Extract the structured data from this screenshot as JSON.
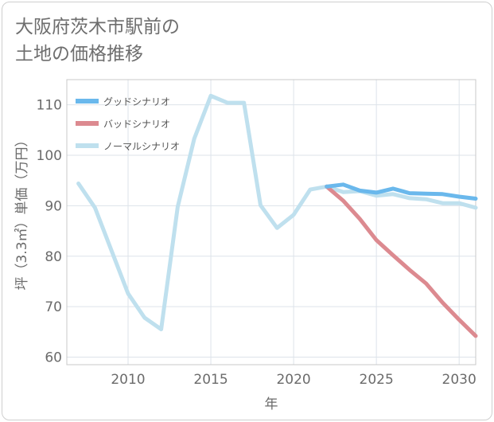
{
  "page": {
    "title_line1": "大阪府茨木市駅前の",
    "title_line2": "土地の価格推移"
  },
  "chart_data": {
    "type": "line",
    "xlabel": "年",
    "ylabel": "坪（3.3㎡）単価（万円）",
    "xlim": [
      2006.3,
      2031
    ],
    "ylim": [
      58.5,
      115
    ],
    "xticks": [
      2010,
      2015,
      2020,
      2025,
      2030
    ],
    "yticks": [
      60,
      70,
      80,
      90,
      100,
      110
    ],
    "grid": true,
    "legend_position": "top-left",
    "series": [
      {
        "name": "グッドシナリオ",
        "color": "#6ab8ec",
        "x": [
          2022,
          2023,
          2024,
          2025,
          2026,
          2027,
          2028,
          2029,
          2030,
          2031
        ],
        "values": [
          93.8,
          94.2,
          93.0,
          92.6,
          93.4,
          92.5,
          92.4,
          92.3,
          91.8,
          91.4
        ]
      },
      {
        "name": "バッドシナリオ",
        "color": "#dc8a90",
        "x": [
          2022,
          2023,
          2024,
          2025,
          2026,
          2027,
          2028,
          2029,
          2030,
          2031
        ],
        "values": [
          93.8,
          91.0,
          87.4,
          83.2,
          80.2,
          77.3,
          74.6,
          70.8,
          67.4,
          64.2
        ]
      },
      {
        "name": "ノーマルシナリオ",
        "color": "#bfe0ee",
        "x": [
          2007,
          2008,
          2009,
          2010,
          2011,
          2012,
          2013,
          2014,
          2015,
          2016,
          2017,
          2018,
          2019,
          2020,
          2021,
          2022,
          2023,
          2024,
          2025,
          2026,
          2027,
          2028,
          2029,
          2030,
          2031
        ],
        "values": [
          94.4,
          89.6,
          81.1,
          72.6,
          67.8,
          65.5,
          89.8,
          103.3,
          111.8,
          110.4,
          110.4,
          90.1,
          85.6,
          88.2,
          93.2,
          93.8,
          92.7,
          92.9,
          92.0,
          92.3,
          91.5,
          91.3,
          90.5,
          90.5,
          89.6
        ]
      }
    ]
  }
}
